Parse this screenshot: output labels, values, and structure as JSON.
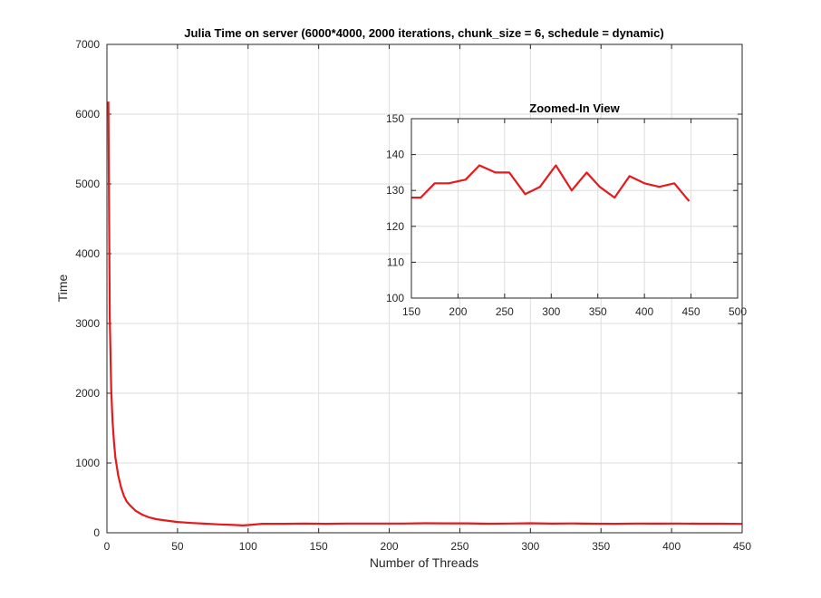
{
  "chart_data": [
    {
      "type": "line",
      "title": "Julia Time on server (6000*4000, 2000 iterations, chunk_size = 6, schedule = dynamic)",
      "xlabel": "Number of Threads",
      "ylabel": "Time",
      "xlim": [
        0,
        450
      ],
      "ylim": [
        0,
        7000
      ],
      "xticks": [
        0,
        50,
        100,
        150,
        200,
        250,
        300,
        350,
        400,
        450
      ],
      "yticks": [
        0,
        1000,
        2000,
        3000,
        4000,
        5000,
        6000,
        7000
      ],
      "grid": true,
      "line_color": "#e41a1c",
      "series": [
        {
          "x": [
            1,
            2,
            3,
            4,
            5,
            6,
            8,
            10,
            12,
            14,
            16,
            20,
            25,
            30,
            35,
            40,
            50,
            60,
            70,
            80,
            90,
            96,
            100,
            110,
            125,
            140,
            155,
            170,
            185,
            200,
            210,
            225,
            240,
            255,
            270,
            285,
            300,
            315,
            330,
            345,
            360,
            375,
            390,
            405,
            420,
            435,
            450
          ],
          "y": [
            6180,
            3100,
            2060,
            1600,
            1300,
            1080,
            820,
            650,
            530,
            450,
            400,
            320,
            260,
            220,
            195,
            180,
            155,
            140,
            130,
            120,
            112,
            105,
            110,
            128,
            128,
            132,
            128,
            132,
            132,
            133,
            132,
            136,
            135,
            135,
            130,
            132,
            136,
            131,
            134,
            130,
            129,
            133,
            131,
            132,
            130,
            130,
            127
          ]
        }
      ]
    },
    {
      "type": "line",
      "title": "Zoomed-In View",
      "xlim": [
        150,
        500
      ],
      "ylim": [
        100,
        150
      ],
      "xticks": [
        150,
        200,
        250,
        300,
        350,
        400,
        450,
        500
      ],
      "yticks": [
        100,
        110,
        120,
        130,
        140,
        150
      ],
      "grid": true,
      "line_color": "#e41a1c",
      "series": [
        {
          "x": [
            150,
            160,
            175,
            190,
            208,
            223,
            240,
            255,
            272,
            288,
            305,
            322,
            338,
            352,
            368,
            384,
            400,
            416,
            432,
            448
          ],
          "y": [
            128,
            128,
            132,
            132,
            133,
            137,
            135,
            135,
            129,
            131,
            137,
            130,
            135,
            131,
            128,
            134,
            132,
            131,
            132,
            127
          ]
        }
      ]
    }
  ]
}
